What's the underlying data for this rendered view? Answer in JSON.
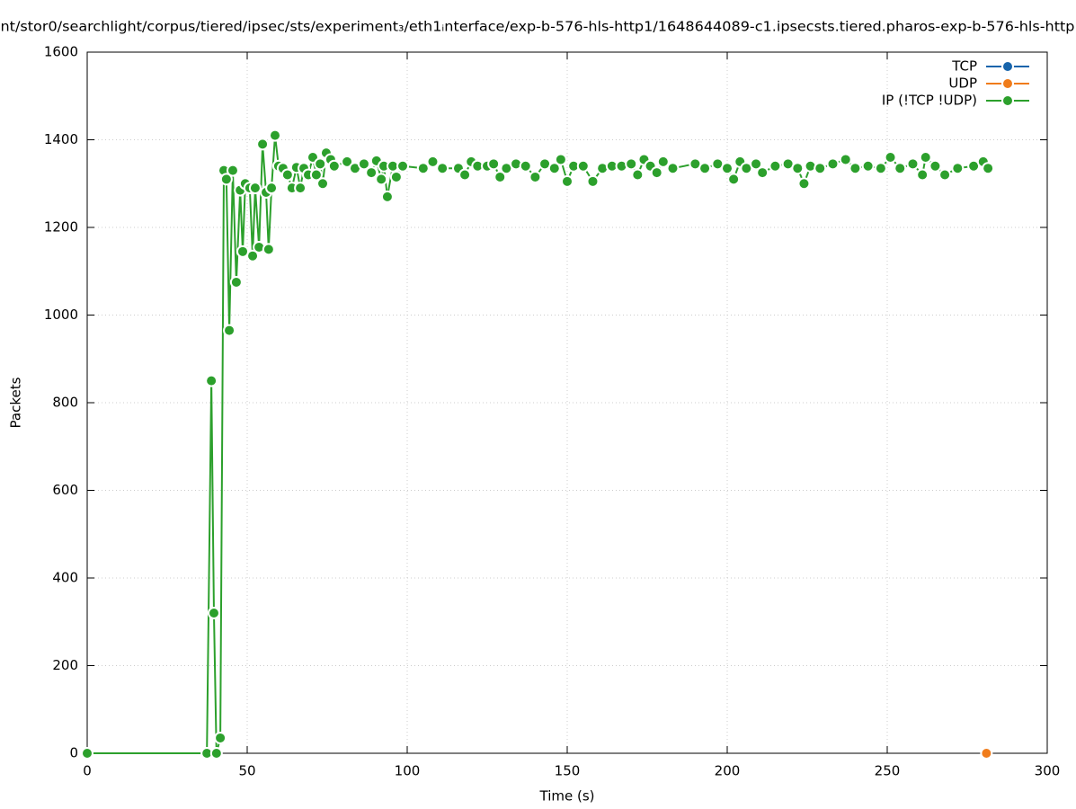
{
  "chart_data": {
    "type": "line",
    "title": "nt/stor0/searchlight/corpus/tiered/ipsec/sts/experiment₃/eth1ᵢnterface/exp-b-576-hls-http1/1648644089-c1.ipsecsts.tiered.pharos-exp-b-576-hls-http",
    "x_label": "Time (s)",
    "y_label": "Packets",
    "xlim": [
      0,
      300
    ],
    "xticks": [
      0,
      50,
      100,
      150,
      200,
      250,
      300
    ],
    "ylim": [
      0,
      1600
    ],
    "yticks": [
      0,
      200,
      400,
      600,
      800,
      1000,
      1200,
      1400,
      1600
    ],
    "grid": true,
    "legend": "top-right",
    "series": [
      {
        "name": "TCP",
        "color": "#1764ab",
        "x": [],
        "values": []
      },
      {
        "name": "UDP",
        "color": "#f07c1b",
        "x": [
          281
        ],
        "values": [
          0
        ]
      },
      {
        "name": "IP (!TCP  !UDP)",
        "color": "#2ca02c",
        "x": [
          0,
          37.4,
          38.8,
          39.6,
          40.4,
          41.6,
          42.7,
          43.5,
          44.4,
          45.5,
          46.6,
          47.8,
          48.6,
          49.4,
          50.8,
          51.7,
          52.5,
          53.7,
          54.8,
          55.9,
          56.7,
          57.6,
          58.7,
          59.8,
          61.2,
          62.6,
          64,
          65.4,
          66.6,
          67.7,
          69.1,
          70.5,
          71.6,
          72.8,
          73.6,
          74.7,
          76.1,
          77.2,
          81.2,
          83.7,
          86.5,
          88.8,
          90.4,
          91.9,
          92.7,
          93.8,
          95.5,
          96.6,
          98.6,
          105,
          108,
          111,
          116,
          118,
          120,
          122,
          125,
          127,
          129,
          131,
          134,
          137,
          140,
          143,
          146,
          148,
          150,
          152,
          155,
          158,
          161,
          164,
          167,
          170,
          172,
          174,
          176,
          178,
          180,
          183,
          190,
          193,
          197,
          200,
          202,
          204,
          206,
          209,
          211,
          215,
          219,
          222,
          224,
          226,
          229,
          233,
          237,
          240,
          244,
          248,
          251,
          254,
          258,
          261,
          262,
          265,
          268,
          272,
          277,
          280,
          281.5
        ],
        "values": [
          0,
          0,
          850,
          320,
          0,
          35,
          1330,
          1310,
          965,
          1330,
          1075,
          1285,
          1145,
          1300,
          1290,
          1135,
          1290,
          1155,
          1390,
          1280,
          1150,
          1290,
          1410,
          1340,
          1335,
          1320,
          1290,
          1337,
          1290,
          1335,
          1320,
          1360,
          1320,
          1345,
          1300,
          1370,
          1355,
          1340,
          1350,
          1335,
          1345,
          1325,
          1352,
          1310,
          1340,
          1270,
          1340,
          1315,
          1340,
          1335,
          1350,
          1335,
          1335,
          1320,
          1350,
          1340,
          1340,
          1345,
          1315,
          1335,
          1345,
          1340,
          1315,
          1345,
          1335,
          1355,
          1305,
          1340,
          1340,
          1305,
          1335,
          1340,
          1340,
          1345,
          1320,
          1355,
          1340,
          1325,
          1350,
          1335,
          1345,
          1335,
          1345,
          1335,
          1310,
          1350,
          1335,
          1345,
          1325,
          1340,
          1345,
          1335,
          1300,
          1340,
          1335,
          1345,
          1355,
          1335,
          1340,
          1335,
          1360,
          1335,
          1345,
          1320,
          1360,
          1340,
          1320,
          1335,
          1340,
          1350,
          1335
        ]
      }
    ]
  }
}
